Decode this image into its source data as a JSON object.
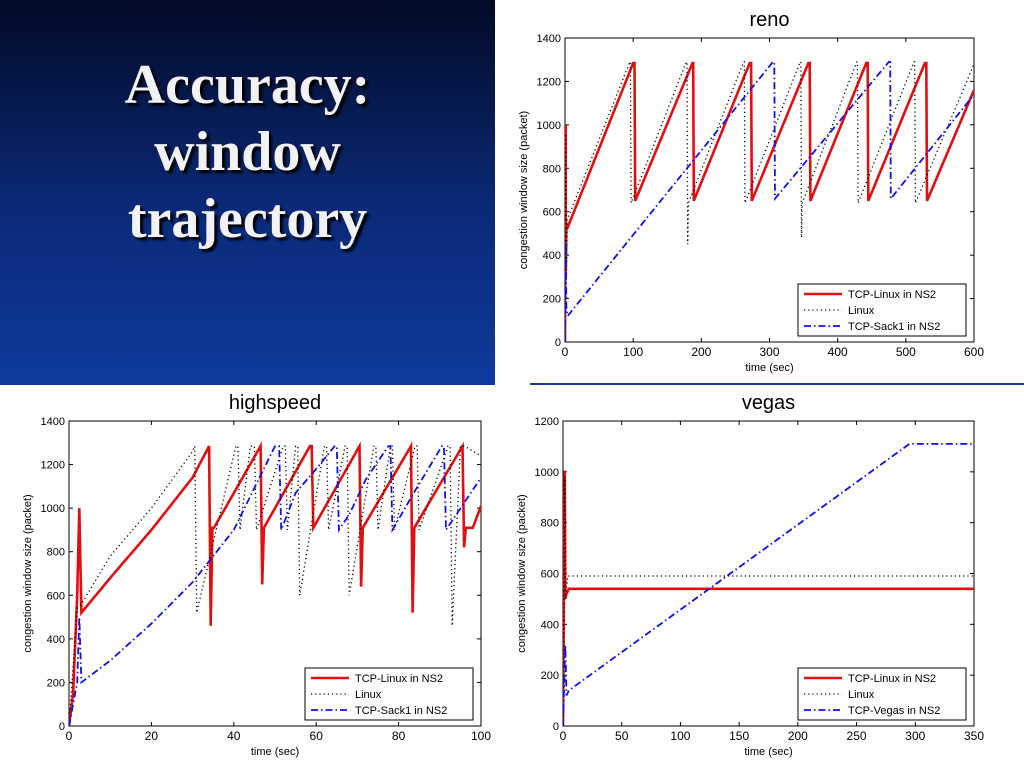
{
  "slide": {
    "title_lines": [
      "Accuracy:",
      "window",
      "trajectory"
    ],
    "title_color": "#f2f2f6",
    "background_top": "#020a26",
    "background_bottom": "#0f3a9c"
  },
  "series_colors": {
    "tcp_linux": "#e01010",
    "linux": "#000000",
    "ns2_other": "#1010e0"
  },
  "chart_data": [
    {
      "type": "line",
      "title": "reno",
      "xlabel": "time (sec)",
      "ylabel": "congestion window size (packet)",
      "xlim": [
        0,
        600
      ],
      "ylim": [
        0,
        1400
      ],
      "xticks": [
        0,
        100,
        200,
        300,
        400,
        500,
        600
      ],
      "yticks": [
        0,
        200,
        400,
        600,
        800,
        1000,
        1200,
        1400
      ],
      "legend_position": "bottom-right",
      "series": [
        {
          "name": "TCP-Linux in NS2",
          "style": "solid",
          "color": "#e01010",
          "x": [
            0,
            1,
            1.2,
            2,
            3,
            100,
            102,
            103,
            187,
            188,
            189,
            271,
            273,
            274,
            357,
            359,
            360,
            442,
            444,
            445,
            528,
            530,
            531,
            600
          ],
          "y": [
            0,
            1000,
            300,
            550,
            520,
            1285,
            1285,
            650,
            1285,
            1285,
            650,
            1285,
            1285,
            650,
            1285,
            1285,
            650,
            1285,
            1285,
            650,
            1285,
            1285,
            650,
            1160
          ]
        },
        {
          "name": "Linux",
          "style": "dotted",
          "color": "#000000",
          "x": [
            0,
            1,
            2,
            3,
            95,
            96,
            97,
            178,
            179,
            180,
            181,
            262,
            263,
            264,
            345,
            346,
            347,
            348,
            428,
            429,
            430,
            512,
            513,
            514,
            600
          ],
          "y": [
            0,
            960,
            350,
            560,
            1290,
            1290,
            640,
            1290,
            1290,
            450,
            640,
            1290,
            1290,
            640,
            1290,
            1290,
            480,
            640,
            1290,
            1290,
            640,
            1290,
            1290,
            640,
            1280
          ]
        },
        {
          "name": "TCP-Sack1 in NS2",
          "style": "dashdot",
          "color": "#1010e0",
          "x": [
            0,
            1,
            2,
            4,
            305,
            307,
            308,
            475,
            477,
            478,
            600
          ],
          "y": [
            0,
            460,
            150,
            120,
            1290,
            1290,
            660,
            1290,
            1290,
            660,
            1140
          ]
        }
      ]
    },
    {
      "type": "line",
      "title": "highspeed",
      "xlabel": "time (sec)",
      "ylabel": "congestion window size (packet)",
      "xlim": [
        0,
        100
      ],
      "ylim": [
        0,
        1400
      ],
      "xticks": [
        0,
        20,
        40,
        60,
        80,
        100
      ],
      "yticks": [
        0,
        200,
        400,
        600,
        800,
        1000,
        1200,
        1400
      ],
      "legend_position": "bottom-right",
      "series": [
        {
          "name": "TCP-Linux in NS2",
          "style": "solid",
          "color": "#e01010",
          "x": [
            0,
            1,
            2,
            2.5,
            3,
            10,
            20,
            30,
            34,
            34.4,
            34.8,
            35.2,
            46.5,
            46.9,
            47.3,
            58.5,
            58.9,
            59.3,
            70.5,
            70.9,
            71.3,
            83,
            83.4,
            83.8,
            95.5,
            95.9,
            96.3,
            98,
            100
          ],
          "y": [
            0,
            150,
            600,
            1000,
            520,
            680,
            900,
            1140,
            1285,
            460,
            910,
            910,
            1285,
            650,
            910,
            1285,
            1285,
            910,
            1285,
            640,
            910,
            1285,
            520,
            910,
            1285,
            820,
            910,
            910,
            1010
          ]
        },
        {
          "name": "Linux",
          "style": "dotted",
          "color": "#000000",
          "x": [
            0,
            2,
            3,
            10,
            20,
            30,
            30.5,
            31,
            40.5,
            41,
            41.5,
            44,
            45,
            45.5,
            52,
            52.5,
            53,
            55,
            55.5,
            56,
            62,
            62.5,
            63,
            67,
            67.5,
            68,
            74,
            74.5,
            75,
            78,
            78.5,
            79,
            84,
            84.5,
            85,
            92,
            92.5,
            93,
            95,
            96,
            100
          ],
          "y": [
            0,
            540,
            560,
            780,
            1000,
            1260,
            1285,
            520,
            1285,
            1285,
            900,
            1285,
            1285,
            900,
            1285,
            1285,
            900,
            1285,
            1285,
            600,
            1285,
            1285,
            900,
            1285,
            1285,
            600,
            1285,
            1285,
            900,
            1285,
            1285,
            900,
            1285,
            1285,
            900,
            1285,
            1285,
            460,
            1285,
            1285,
            1240
          ]
        },
        {
          "name": "TCP-Sack1 in NS2",
          "style": "dashdot",
          "color": "#1010e0",
          "x": [
            0,
            2,
            2.5,
            3,
            10,
            20,
            30,
            40,
            50,
            51,
            51.5,
            55,
            60,
            64.5,
            65,
            65.5,
            68,
            72,
            77.5,
            78,
            78.5,
            84,
            90.5,
            91,
            91.5,
            100
          ],
          "y": [
            0,
            200,
            500,
            200,
            300,
            470,
            660,
            900,
            1285,
            1285,
            900,
            1070,
            1180,
            1285,
            1285,
            900,
            970,
            1130,
            1285,
            1285,
            900,
            1080,
            1285,
            1285,
            900,
            1140
          ]
        }
      ]
    },
    {
      "type": "line",
      "title": "vegas",
      "xlabel": "time (sec)",
      "ylabel": "congestion window size (packet)",
      "xlim": [
        0,
        350
      ],
      "ylim": [
        0,
        1200
      ],
      "xticks": [
        0,
        50,
        100,
        150,
        200,
        250,
        300,
        350
      ],
      "yticks": [
        0,
        200,
        400,
        600,
        800,
        1000,
        1200
      ],
      "legend_position": "bottom-right",
      "series": [
        {
          "name": "TCP-Linux in NS2",
          "style": "solid",
          "color": "#e01010",
          "x": [
            0,
            1.5,
            2,
            3,
            5,
            350
          ],
          "y": [
            0,
            1005,
            500,
            520,
            540,
            540
          ]
        },
        {
          "name": "Linux",
          "style": "dotted",
          "color": "#000000",
          "x": [
            0,
            1.5,
            2,
            4,
            350
          ],
          "y": [
            0,
            980,
            500,
            590,
            590
          ]
        },
        {
          "name": "TCP-Vegas in NS2",
          "style": "dashdot",
          "color": "#1010e0",
          "x": [
            0,
            2,
            3,
            5,
            295,
            350
          ],
          "y": [
            0,
            320,
            120,
            140,
            1110,
            1110
          ]
        }
      ]
    }
  ]
}
